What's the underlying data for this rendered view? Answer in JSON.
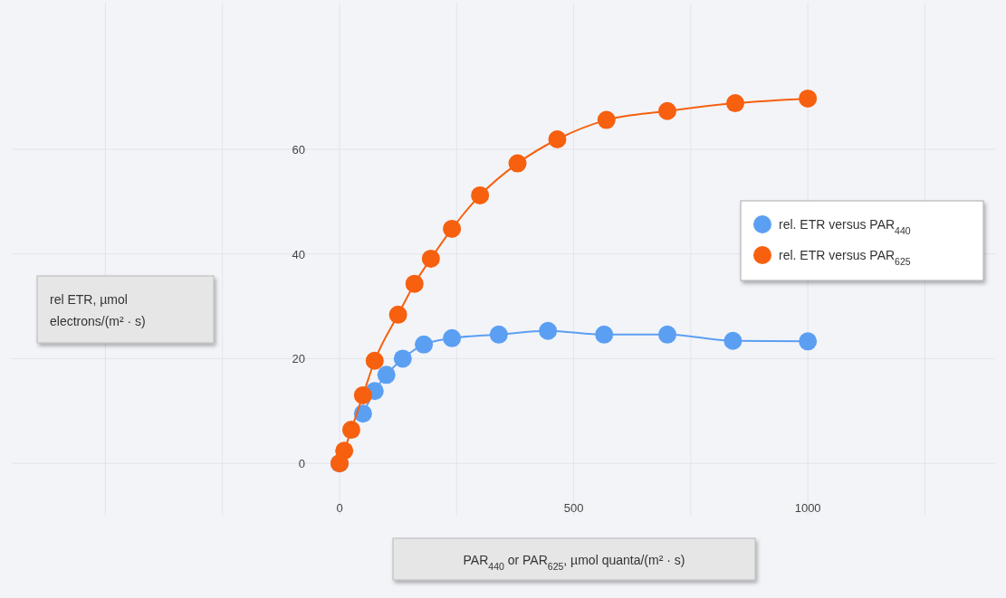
{
  "chart_data": {
    "type": "line",
    "xlabel": "PAR$_{440}$ or PAR$_{625}$, µmol quanta/(m² · s)",
    "ylabel": "rel ETR, µmol electrons/(m² · s)",
    "xlim": [
      -700,
      1400
    ],
    "ylim": [
      -10,
      88
    ],
    "xticks": [
      {
        "value": -500,
        "label": null
      },
      {
        "value": -250,
        "label": null
      },
      0,
      {
        "value": 250,
        "label": null
      },
      500,
      {
        "value": 750,
        "label": null
      },
      1000,
      {
        "value": 1250,
        "label": null
      }
    ],
    "yticks": [
      0,
      20,
      40,
      60
    ],
    "grid": true,
    "legend": "right",
    "marker": "circle",
    "line_style": "solid",
    "series": [
      {
        "name": "rel. ETR versus PAR$_{440}$",
        "color": "#5b9ff3",
        "x": [
          0,
          10,
          25,
          50,
          75,
          100,
          135,
          180,
          240,
          340,
          445,
          565,
          700,
          840,
          1000
        ],
        "values": [
          0,
          null,
          null,
          9.5,
          13.8,
          16.9,
          20,
          22.7,
          23.9,
          24.6,
          25.3,
          24.6,
          24.6,
          23.4,
          23.3
        ]
      },
      {
        "name": "rel. ETR versus PAR$_{625}$",
        "color": "#f6600f",
        "x": [
          0,
          10,
          25,
          50,
          75,
          125,
          160,
          195,
          240,
          300,
          380,
          465,
          570,
          700,
          845,
          1000
        ],
        "values": [
          0,
          2.4,
          6.4,
          13,
          19.6,
          28.4,
          34.3,
          39.1,
          44.8,
          51.2,
          57.3,
          61.9,
          65.6,
          67.3,
          68.8,
          69.7
        ]
      }
    ]
  }
}
